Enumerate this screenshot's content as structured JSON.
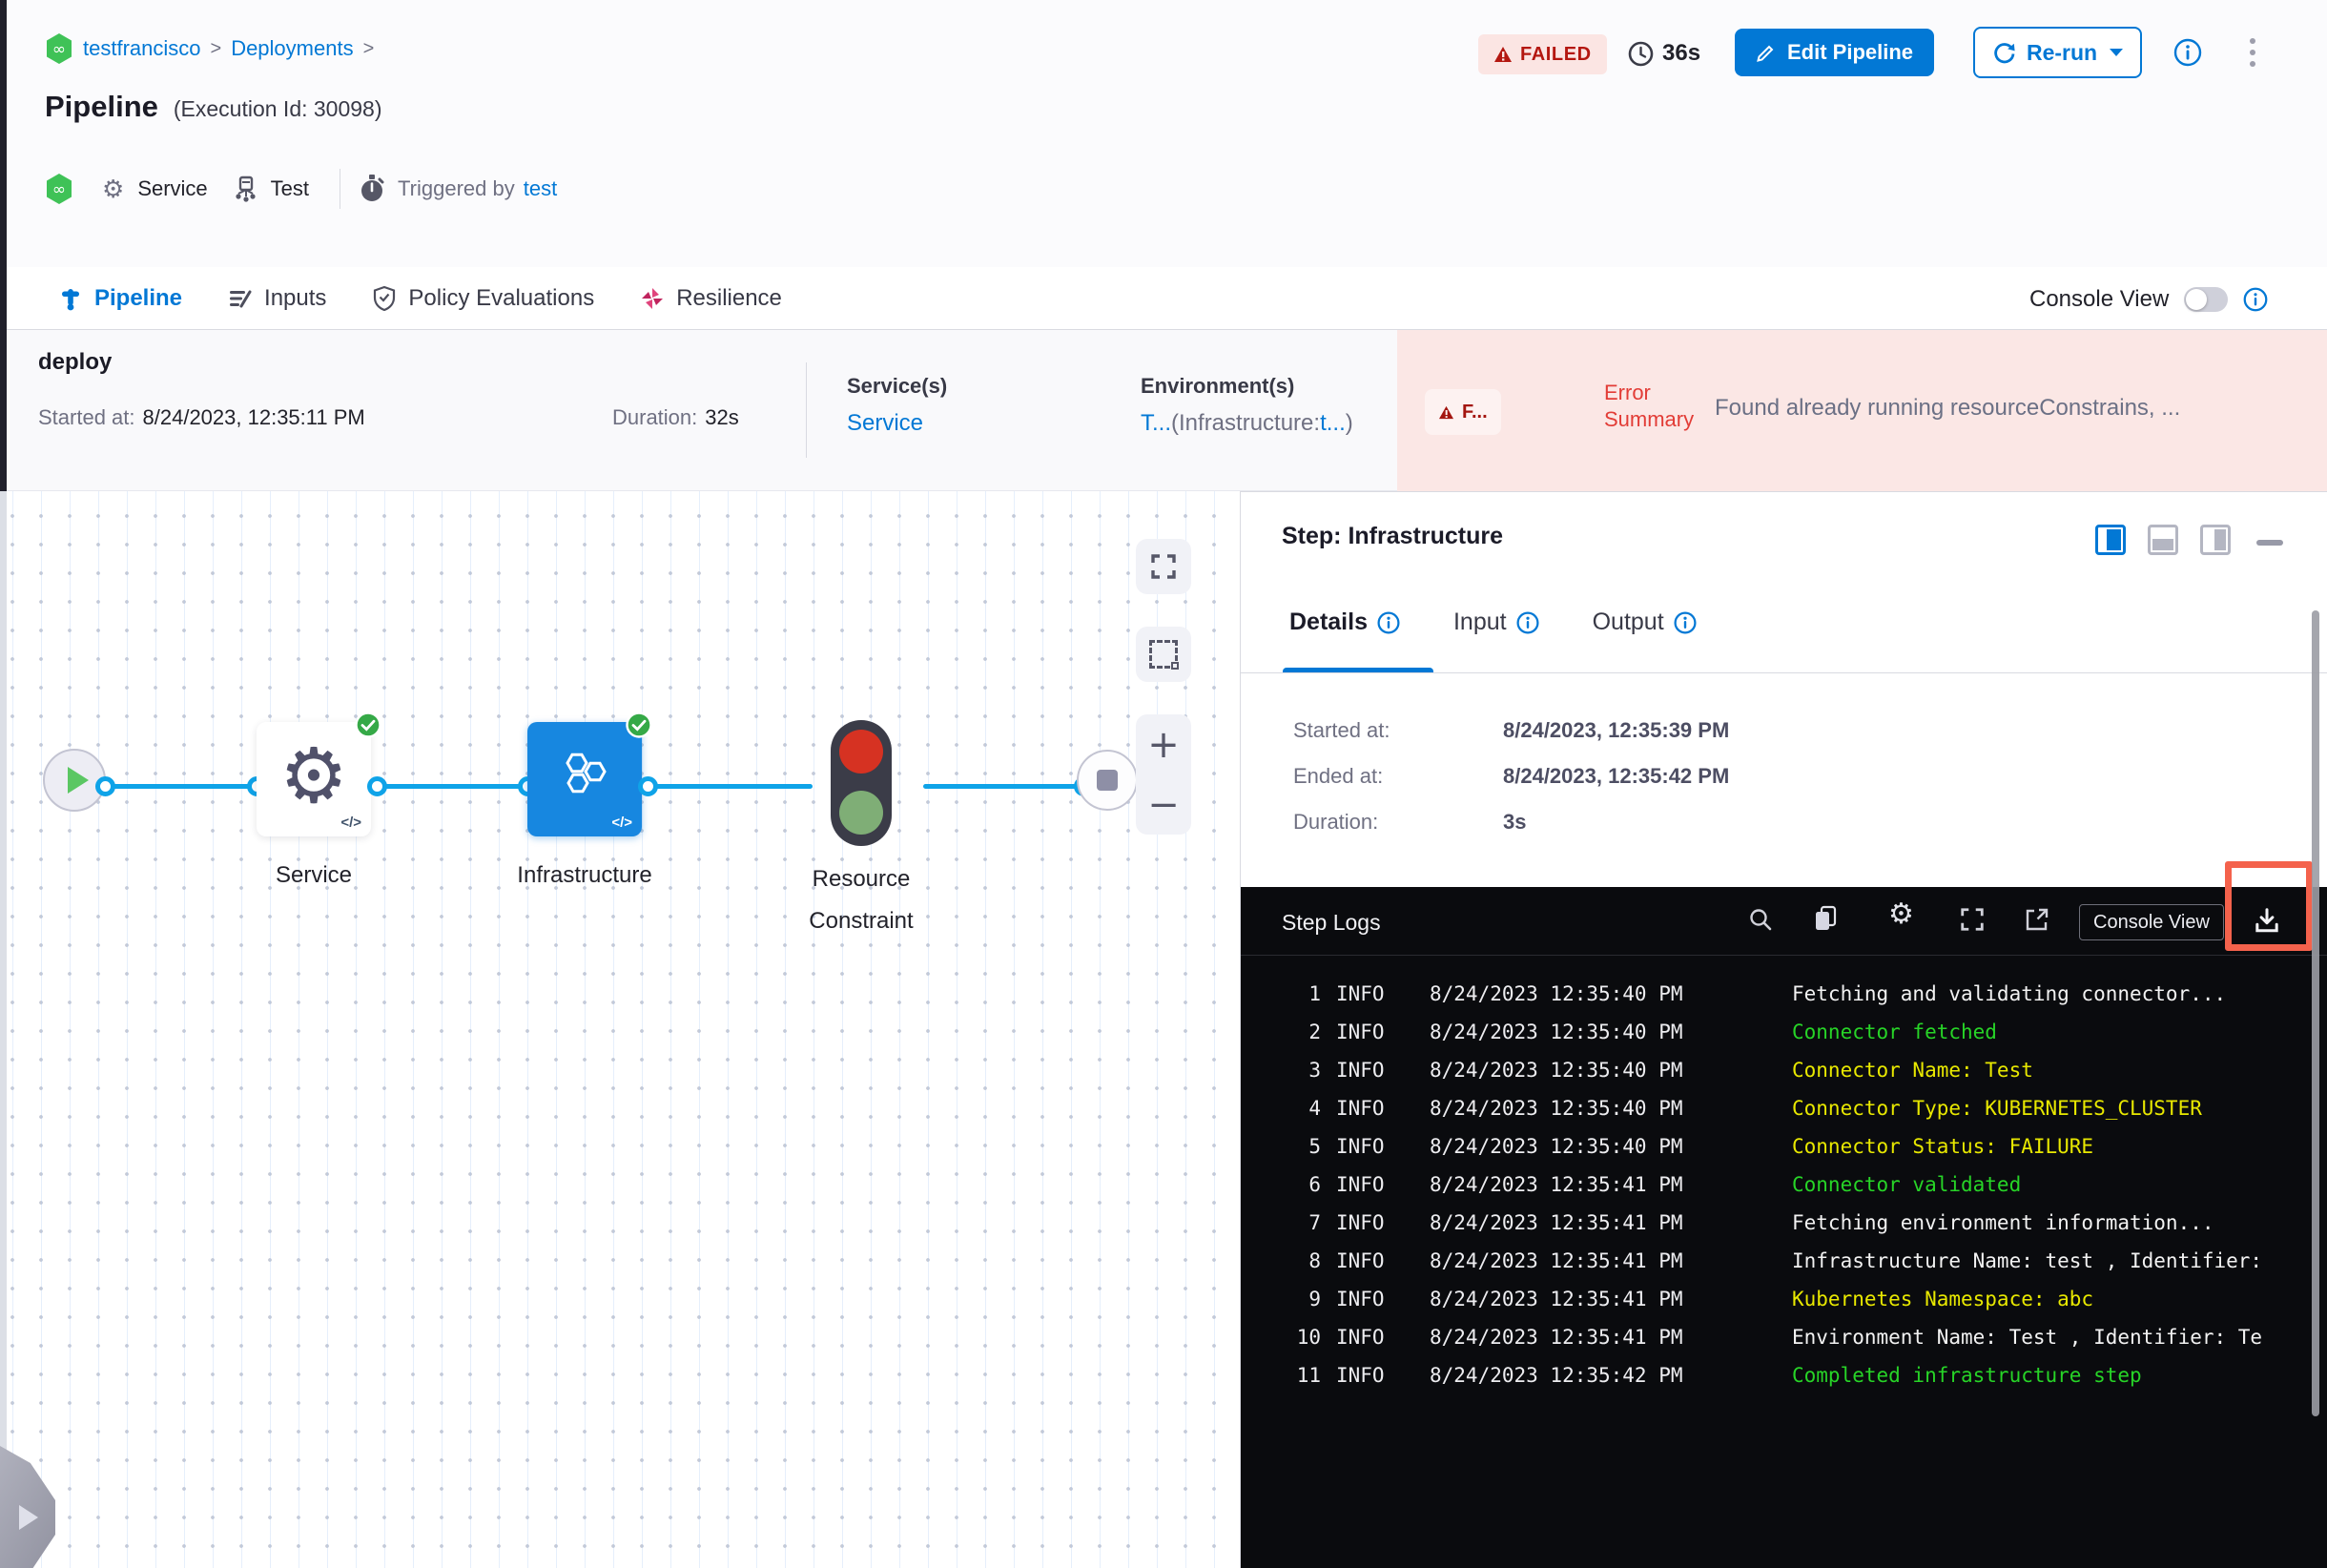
{
  "colors": {
    "primary": "#0278d5",
    "line-blue": "#0fa3e8",
    "failed-red": "#b41710",
    "error-red": "#e23c36",
    "pink-bg": "#fbe7e5",
    "green": "#35a947",
    "console-bg": "#0a0b0e",
    "log-white": "#f2f2f2",
    "log-green": "#27d427",
    "log-yellow": "#e8e800",
    "highlight-red": "#f4624c"
  },
  "breadcrumb": {
    "project": "testfrancisco",
    "section": "Deployments",
    "separator": ">"
  },
  "header": {
    "title": "Pipeline",
    "execution_id": "(Execution Id: 30098)",
    "status_badge": "FAILED",
    "elapsed": "36s",
    "edit_pipeline": "Edit Pipeline",
    "rerun": "Re-run",
    "service": "Service",
    "environment": "Test",
    "triggered_by_label": "Triggered by",
    "triggered_by_value": "test"
  },
  "tabs": [
    {
      "label": "Pipeline",
      "active": true
    },
    {
      "label": "Inputs",
      "active": false
    },
    {
      "label": "Policy Evaluations",
      "active": false
    },
    {
      "label": "Resilience",
      "active": false
    }
  ],
  "console_view": {
    "label": "Console View",
    "enabled": false
  },
  "stage": {
    "name": "deploy",
    "started_label": "Started at:",
    "started_value": "8/24/2023, 12:35:11 PM",
    "duration_label": "Duration:",
    "duration_value": "32s",
    "services_header": "Service(s)",
    "service_link": "Service",
    "environments_header": "Environment(s)",
    "env_name": "T...",
    "env_infra_label": "(Infrastructure:",
    "env_infra_value": "t...",
    "env_close": ")",
    "error_badge": "F...",
    "error_summary_label": "Error Summary",
    "error_message": "Found already running resourceConstrains, ..."
  },
  "graph": {
    "nodes": [
      {
        "label": "Service"
      },
      {
        "label": "Infrastructure"
      },
      {
        "label": "Resource Constraint"
      }
    ],
    "code_glyph": "</>"
  },
  "step_panel": {
    "title": "Step: Infrastructure",
    "tabs": [
      {
        "label": "Details",
        "active": true
      },
      {
        "label": "Input",
        "active": false
      },
      {
        "label": "Output",
        "active": false
      }
    ],
    "details": [
      {
        "label": "Started at:",
        "value": "8/24/2023, 12:35:39 PM"
      },
      {
        "label": "Ended at:",
        "value": "8/24/2023, 12:35:42 PM"
      },
      {
        "label": "Duration:",
        "value": "3s"
      }
    ]
  },
  "logs": {
    "title": "Step Logs",
    "console_view_button": "Console View",
    "rows": [
      {
        "n": "1",
        "level": "INFO",
        "time": "8/24/2023 12:35:40 PM",
        "msg": "Fetching and validating connector...",
        "color": "white"
      },
      {
        "n": "2",
        "level": "INFO",
        "time": "8/24/2023 12:35:40 PM",
        "msg": "Connector fetched",
        "color": "green"
      },
      {
        "n": "3",
        "level": "INFO",
        "time": "8/24/2023 12:35:40 PM",
        "msg": "Connector Name: Test",
        "color": "yellow"
      },
      {
        "n": "4",
        "level": "INFO",
        "time": "8/24/2023 12:35:40 PM",
        "msg": "Connector Type: KUBERNETES_CLUSTER",
        "color": "yellow"
      },
      {
        "n": "5",
        "level": "INFO",
        "time": "8/24/2023 12:35:40 PM",
        "msg": "Connector Status: FAILURE",
        "color": "yellow"
      },
      {
        "n": "6",
        "level": "INFO",
        "time": "8/24/2023 12:35:41 PM",
        "msg": "Connector validated",
        "color": "green"
      },
      {
        "n": "7",
        "level": "INFO",
        "time": "8/24/2023 12:35:41 PM",
        "msg": "Fetching environment information...",
        "color": "white"
      },
      {
        "n": "8",
        "level": "INFO",
        "time": "8/24/2023 12:35:41 PM",
        "msg": "Infrastructure Name: test , Identifier:",
        "color": "white"
      },
      {
        "n": "9",
        "level": "INFO",
        "time": "8/24/2023 12:35:41 PM",
        "msg": "Kubernetes Namespace: abc",
        "color": "yellow"
      },
      {
        "n": "10",
        "level": "INFO",
        "time": "8/24/2023 12:35:41 PM",
        "msg": "Environment Name: Test , Identifier: Te",
        "color": "white"
      },
      {
        "n": "11",
        "level": "INFO",
        "time": "8/24/2023 12:35:42 PM",
        "msg": "Completed infrastructure step",
        "color": "green"
      }
    ]
  }
}
